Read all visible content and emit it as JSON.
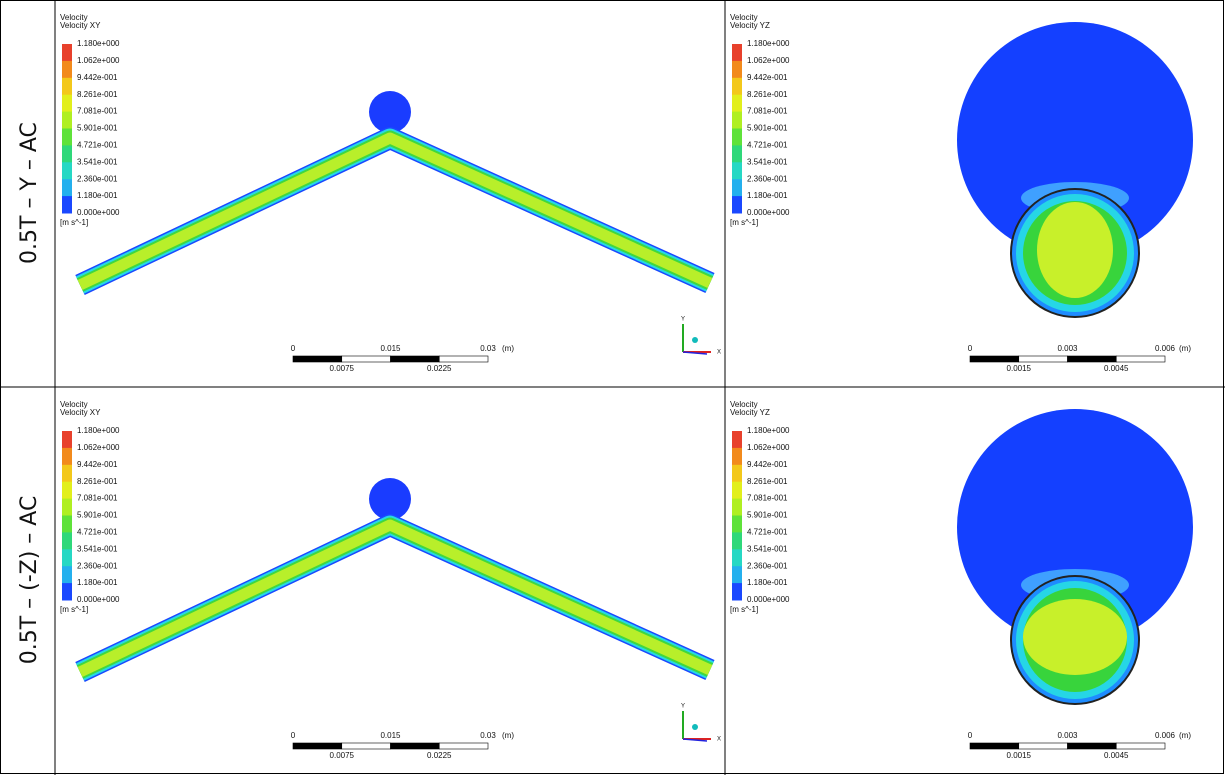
{
  "rows": [
    {
      "label": "0.5T – Y – AC",
      "panels": [
        {
          "legend_title": "Velocity",
          "legend_subtitle": "Velocity XY",
          "legend_levels": [
            "1.180e+000",
            "1.062e+000",
            "9.442e-001",
            "8.261e-001",
            "7.081e-001",
            "5.901e-001",
            "4.721e-001",
            "3.541e-001",
            "2.360e-001",
            "1.180e-001",
            "0.000e+000"
          ],
          "unit": "[m s^-1]",
          "scale_top": [
            "0",
            "0.015",
            "0.03"
          ],
          "scale_unit": "(m)",
          "scale_bottom": [
            "0.0075",
            "0.0225"
          ],
          "triad": [
            "Y",
            "X"
          ]
        },
        {
          "legend_title": "Velocity",
          "legend_subtitle": "Velocity YZ",
          "legend_levels": [
            "1.180e+000",
            "1.062e+000",
            "9.442e-001",
            "8.261e-001",
            "7.081e-001",
            "5.901e-001",
            "4.721e-001",
            "3.541e-001",
            "2.360e-001",
            "1.180e-001",
            "0.000e+000"
          ],
          "unit": "[m s^-1]",
          "scale_top": [
            "0",
            "0.003",
            "0.006"
          ],
          "scale_unit": "(m)",
          "scale_bottom": [
            "0.0015",
            "0.0045"
          ]
        }
      ]
    },
    {
      "label": "0.5T – (-Z) – AC",
      "panels": [
        {
          "legend_title": "Velocity",
          "legend_subtitle": "Velocity XY",
          "legend_levels": [
            "1.180e+000",
            "1.062e+000",
            "9.442e-001",
            "8.261e-001",
            "7.081e-001",
            "5.901e-001",
            "4.721e-001",
            "3.541e-001",
            "2.360e-001",
            "1.180e-001",
            "0.000e+000"
          ],
          "unit": "[m s^-1]",
          "scale_top": [
            "0",
            "0.015",
            "0.03"
          ],
          "scale_unit": "(m)",
          "scale_bottom": [
            "0.0075",
            "0.0225"
          ],
          "triad": [
            "Y",
            "X"
          ]
        },
        {
          "legend_title": "Velocity",
          "legend_subtitle": "Velocity YZ",
          "legend_levels": [
            "1.180e+000",
            "1.062e+000",
            "9.442e-001",
            "8.261e-001",
            "7.081e-001",
            "5.901e-001",
            "4.721e-001",
            "3.541e-001",
            "2.360e-001",
            "1.180e-001",
            "0.000e+000"
          ],
          "unit": "[m s^-1]",
          "scale_top": [
            "0",
            "0.003",
            "0.006"
          ],
          "scale_unit": "(m)",
          "scale_bottom": [
            "0.0015",
            "0.0045"
          ]
        }
      ]
    }
  ]
}
